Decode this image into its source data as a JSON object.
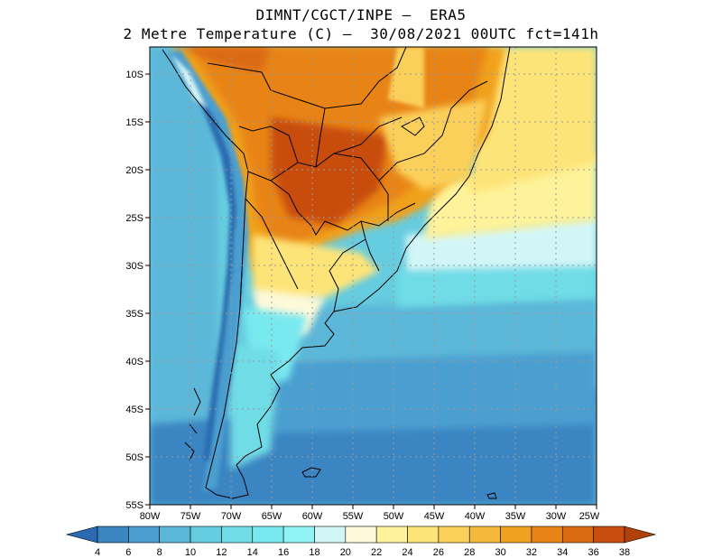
{
  "header": {
    "line1": "DIMNT/CGCT/INPE –  ERA5",
    "line2": "2 Metre Temperature (C) –  30/08/2021 00UTC fct=141h"
  },
  "map": {
    "lon_range": [
      -80,
      -25
    ],
    "lat_range": [
      -55,
      -7
    ],
    "lat_ticks": [
      "10S",
      "15S",
      "20S",
      "25S",
      "30S",
      "35S",
      "40S",
      "45S",
      "50S",
      "55S"
    ],
    "lon_ticks": [
      "80W",
      "75W",
      "70W",
      "65W",
      "60W",
      "55W",
      "50W",
      "45W",
      "40W",
      "35W",
      "30W",
      "25W"
    ],
    "gridlines": "dotted"
  },
  "colorbar": {
    "labels": [
      "4",
      "6",
      "8",
      "10",
      "12",
      "14",
      "16",
      "18",
      "20",
      "22",
      "24",
      "26",
      "28",
      "30",
      "32",
      "34",
      "36",
      "38"
    ],
    "colors": [
      "#2b6cb0",
      "#3b85c2",
      "#4b9fd0",
      "#5bb7d8",
      "#66ccdf",
      "#6fdce6",
      "#79e9f0",
      "#8ff3f6",
      "#d2f6f8",
      "#fdf9da",
      "#fef29a",
      "#fde478",
      "#fbd05a",
      "#f6b83a",
      "#f0a11f",
      "#e88417",
      "#dc6a12",
      "#c84e10",
      "#b0400c"
    ]
  }
}
